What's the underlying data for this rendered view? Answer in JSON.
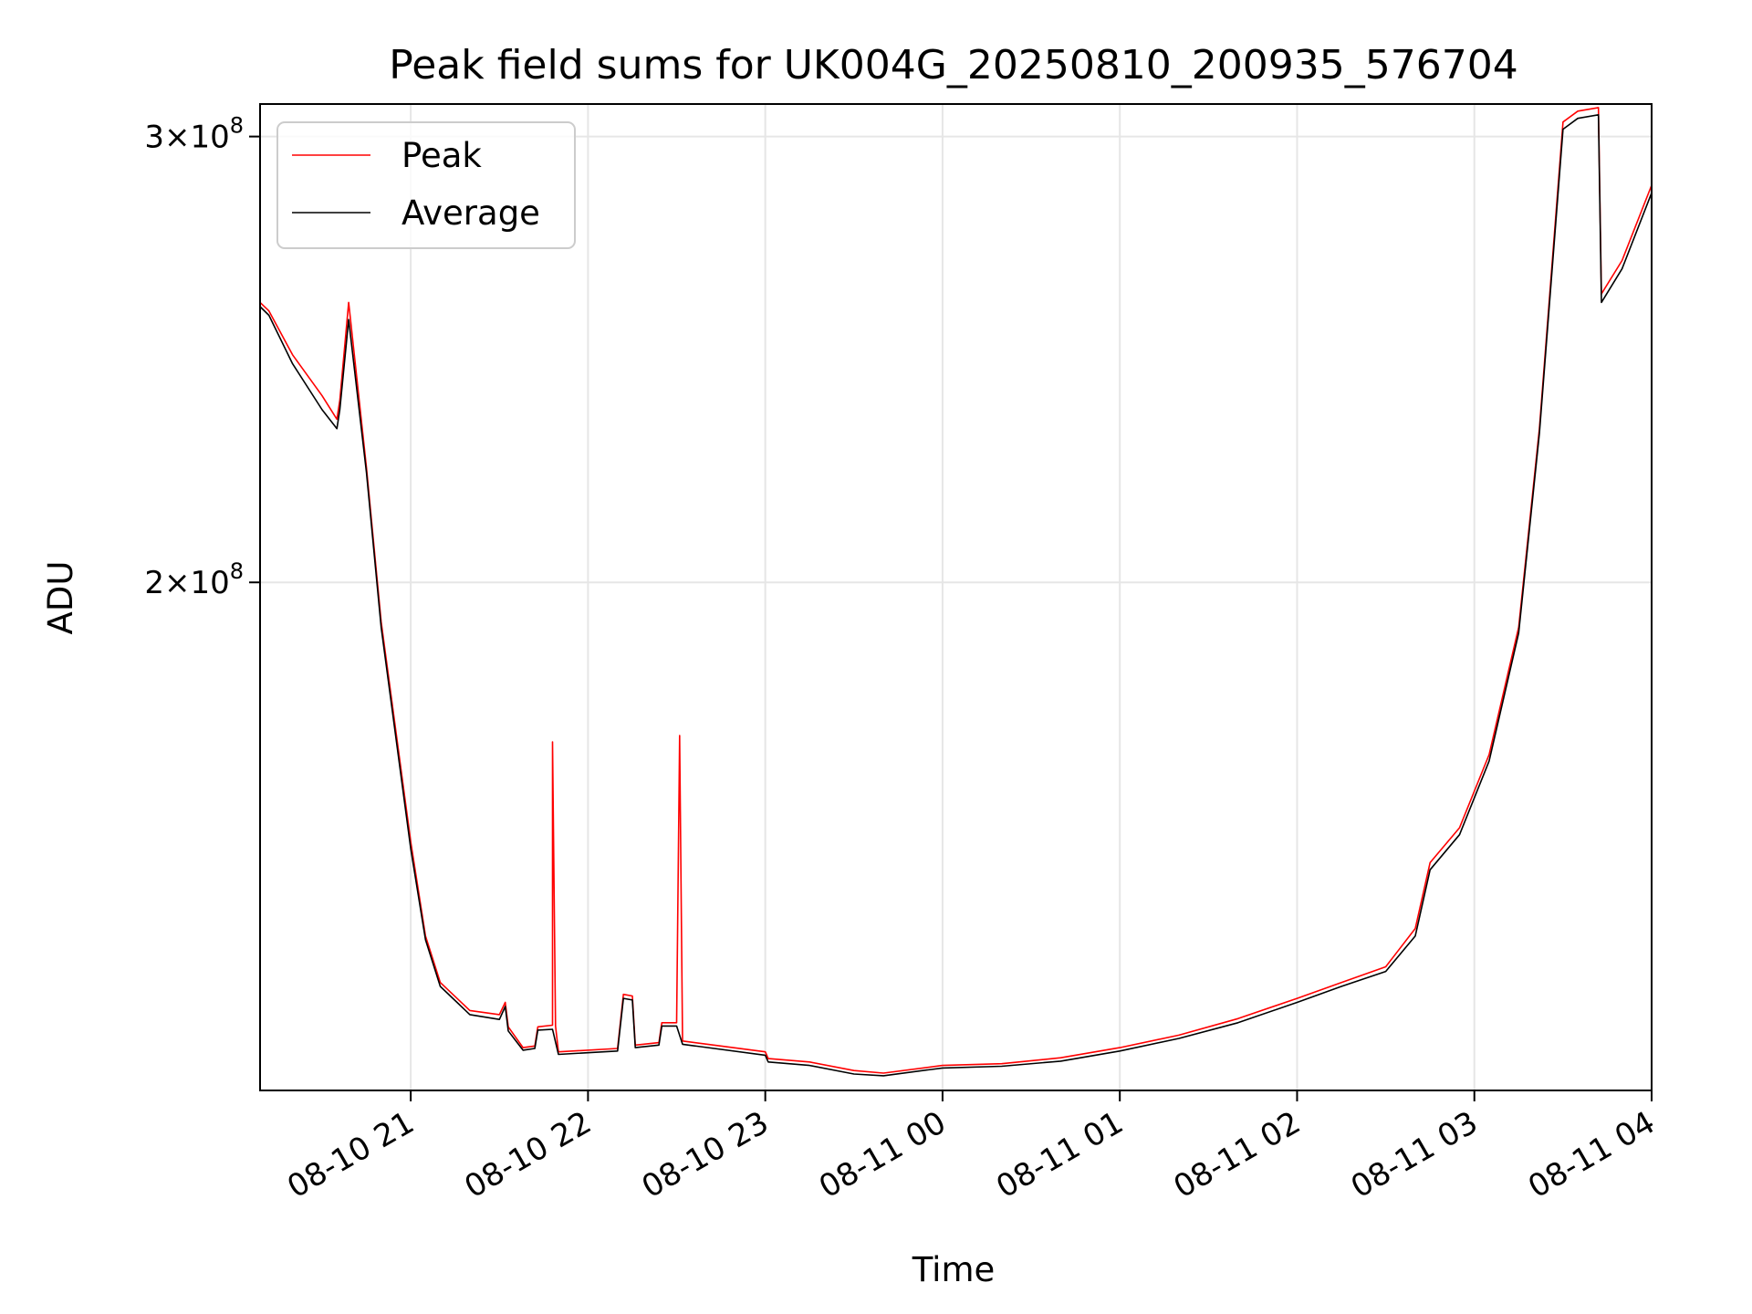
{
  "chart_data": {
    "type": "line",
    "title": "Peak field sums for UK004G_20250810_200935_576704",
    "xlabel": "Time",
    "ylabel": "ADU",
    "yscale": "log",
    "grid": true,
    "legend_position": "upper-left",
    "xlim": [
      "2025-08-10 20:09",
      "2025-08-11 04:00"
    ],
    "ylim": [
      126000000,
      309000000
    ],
    "x_ticks": [
      "08-10 21",
      "08-10 22",
      "08-10 23",
      "08-11 00",
      "08-11 01",
      "08-11 02",
      "08-11 03",
      "08-11 04"
    ],
    "y_ticks": [
      {
        "value": 200000000,
        "mantissa": "2",
        "base": "10",
        "exponent": "8"
      },
      {
        "value": 300000000,
        "mantissa": "3",
        "base": "10",
        "exponent": "8"
      }
    ],
    "series": [
      {
        "name": "Peak",
        "color": "#ff0000",
        "points": [
          [
            "2025-08-10 20:09",
            258000000
          ],
          [
            "2025-08-10 20:12",
            256000000
          ],
          [
            "2025-08-10 20:20",
            246000000
          ],
          [
            "2025-08-10 20:30",
            237000000
          ],
          [
            "2025-08-10 20:35",
            232000000
          ],
          [
            "2025-08-10 20:36",
            236000000
          ],
          [
            "2025-08-10 20:39",
            258000000
          ],
          [
            "2025-08-10 20:45",
            222000000
          ],
          [
            "2025-08-10 20:50",
            193000000
          ],
          [
            "2025-08-10 21:00",
            158000000
          ],
          [
            "2025-08-10 21:05",
            145000000
          ],
          [
            "2025-08-10 21:10",
            139000000
          ],
          [
            "2025-08-10 21:20",
            135500000
          ],
          [
            "2025-08-10 21:30",
            135000000
          ],
          [
            "2025-08-10 21:32",
            136500000
          ],
          [
            "2025-08-10 21:33",
            133500000
          ],
          [
            "2025-08-10 21:38",
            131000000
          ],
          [
            "2025-08-10 21:42",
            131200000
          ],
          [
            "2025-08-10 21:43",
            133500000
          ],
          [
            "2025-08-10 21:48",
            133700000
          ],
          [
            "2025-08-10 21:48",
            173000000
          ],
          [
            "2025-08-10 21:49",
            133600000
          ],
          [
            "2025-08-10 21:50",
            130500000
          ],
          [
            "2025-08-10 22:10",
            130900000
          ],
          [
            "2025-08-10 22:12",
            137500000
          ],
          [
            "2025-08-10 22:15",
            137300000
          ],
          [
            "2025-08-10 22:16",
            131300000
          ],
          [
            "2025-08-10 22:24",
            131600000
          ],
          [
            "2025-08-10 22:25",
            134000000
          ],
          [
            "2025-08-10 22:30",
            134000000
          ],
          [
            "2025-08-10 22:31",
            174000000
          ],
          [
            "2025-08-10 22:32",
            131800000
          ],
          [
            "2025-08-10 23:00",
            130500000
          ],
          [
            "2025-08-10 23:01",
            129700000
          ],
          [
            "2025-08-10 23:15",
            129300000
          ],
          [
            "2025-08-10 23:30",
            128300000
          ],
          [
            "2025-08-10 23:40",
            128000000
          ],
          [
            "2025-08-11 00:00",
            128900000
          ],
          [
            "2025-08-11 00:20",
            129100000
          ],
          [
            "2025-08-11 00:40",
            129800000
          ],
          [
            "2025-08-11 01:00",
            131000000
          ],
          [
            "2025-08-11 01:20",
            132500000
          ],
          [
            "2025-08-11 01:40",
            134500000
          ],
          [
            "2025-08-11 02:00",
            137000000
          ],
          [
            "2025-08-11 02:15",
            139000000
          ],
          [
            "2025-08-11 02:30",
            141000000
          ],
          [
            "2025-08-11 02:40",
            146000000
          ],
          [
            "2025-08-11 02:45",
            155000000
          ],
          [
            "2025-08-11 02:55",
            160000000
          ],
          [
            "2025-08-11 03:05",
            171000000
          ],
          [
            "2025-08-11 03:15",
            192000000
          ],
          [
            "2025-08-11 03:22",
            230000000
          ],
          [
            "2025-08-11 03:30",
            304000000
          ],
          [
            "2025-08-11 03:35",
            307000000
          ],
          [
            "2025-08-11 03:42",
            308000000
          ],
          [
            "2025-08-11 03:43",
            260000000
          ],
          [
            "2025-08-11 03:50",
            268000000
          ],
          [
            "2025-08-11 04:00",
            287000000
          ]
        ]
      },
      {
        "name": "Average",
        "color": "#000000",
        "points": [
          [
            "2025-08-10 20:09",
            257000000
          ],
          [
            "2025-08-10 20:12",
            255000000
          ],
          [
            "2025-08-10 20:20",
            244000000
          ],
          [
            "2025-08-10 20:30",
            234000000
          ],
          [
            "2025-08-10 20:35",
            230000000
          ],
          [
            "2025-08-10 20:36",
            234000000
          ],
          [
            "2025-08-10 20:39",
            254000000
          ],
          [
            "2025-08-10 20:45",
            221000000
          ],
          [
            "2025-08-10 20:50",
            192000000
          ],
          [
            "2025-08-10 21:00",
            157000000
          ],
          [
            "2025-08-10 21:05",
            144500000
          ],
          [
            "2025-08-10 21:10",
            138500000
          ],
          [
            "2025-08-10 21:20",
            135000000
          ],
          [
            "2025-08-10 21:30",
            134400000
          ],
          [
            "2025-08-10 21:32",
            136000000
          ],
          [
            "2025-08-10 21:33",
            133000000
          ],
          [
            "2025-08-10 21:38",
            130700000
          ],
          [
            "2025-08-10 21:42",
            130900000
          ],
          [
            "2025-08-10 21:43",
            133100000
          ],
          [
            "2025-08-10 21:48",
            133200000
          ],
          [
            "2025-08-10 21:50",
            130200000
          ],
          [
            "2025-08-10 22:10",
            130600000
          ],
          [
            "2025-08-10 22:12",
            137000000
          ],
          [
            "2025-08-10 22:15",
            136800000
          ],
          [
            "2025-08-10 22:16",
            131000000
          ],
          [
            "2025-08-10 22:24",
            131300000
          ],
          [
            "2025-08-10 22:25",
            133600000
          ],
          [
            "2025-08-10 22:30",
            133600000
          ],
          [
            "2025-08-10 22:32",
            131400000
          ],
          [
            "2025-08-10 23:00",
            130100000
          ],
          [
            "2025-08-10 23:01",
            129300000
          ],
          [
            "2025-08-10 23:15",
            128900000
          ],
          [
            "2025-08-10 23:30",
            127900000
          ],
          [
            "2025-08-10 23:40",
            127700000
          ],
          [
            "2025-08-11 00:00",
            128600000
          ],
          [
            "2025-08-11 00:20",
            128800000
          ],
          [
            "2025-08-11 00:40",
            129400000
          ],
          [
            "2025-08-11 01:00",
            130600000
          ],
          [
            "2025-08-11 01:20",
            132100000
          ],
          [
            "2025-08-11 01:40",
            134000000
          ],
          [
            "2025-08-11 02:00",
            136500000
          ],
          [
            "2025-08-11 02:15",
            138500000
          ],
          [
            "2025-08-11 02:30",
            140400000
          ],
          [
            "2025-08-11 02:40",
            145000000
          ],
          [
            "2025-08-11 02:45",
            154000000
          ],
          [
            "2025-08-11 02:55",
            159000000
          ],
          [
            "2025-08-11 03:05",
            170000000
          ],
          [
            "2025-08-11 03:15",
            191000000
          ],
          [
            "2025-08-11 03:22",
            229000000
          ],
          [
            "2025-08-11 03:30",
            302000000
          ],
          [
            "2025-08-11 03:35",
            305000000
          ],
          [
            "2025-08-11 03:42",
            306000000
          ],
          [
            "2025-08-11 03:43",
            258000000
          ],
          [
            "2025-08-11 03:50",
            266000000
          ],
          [
            "2025-08-11 04:00",
            285000000
          ]
        ]
      }
    ]
  }
}
